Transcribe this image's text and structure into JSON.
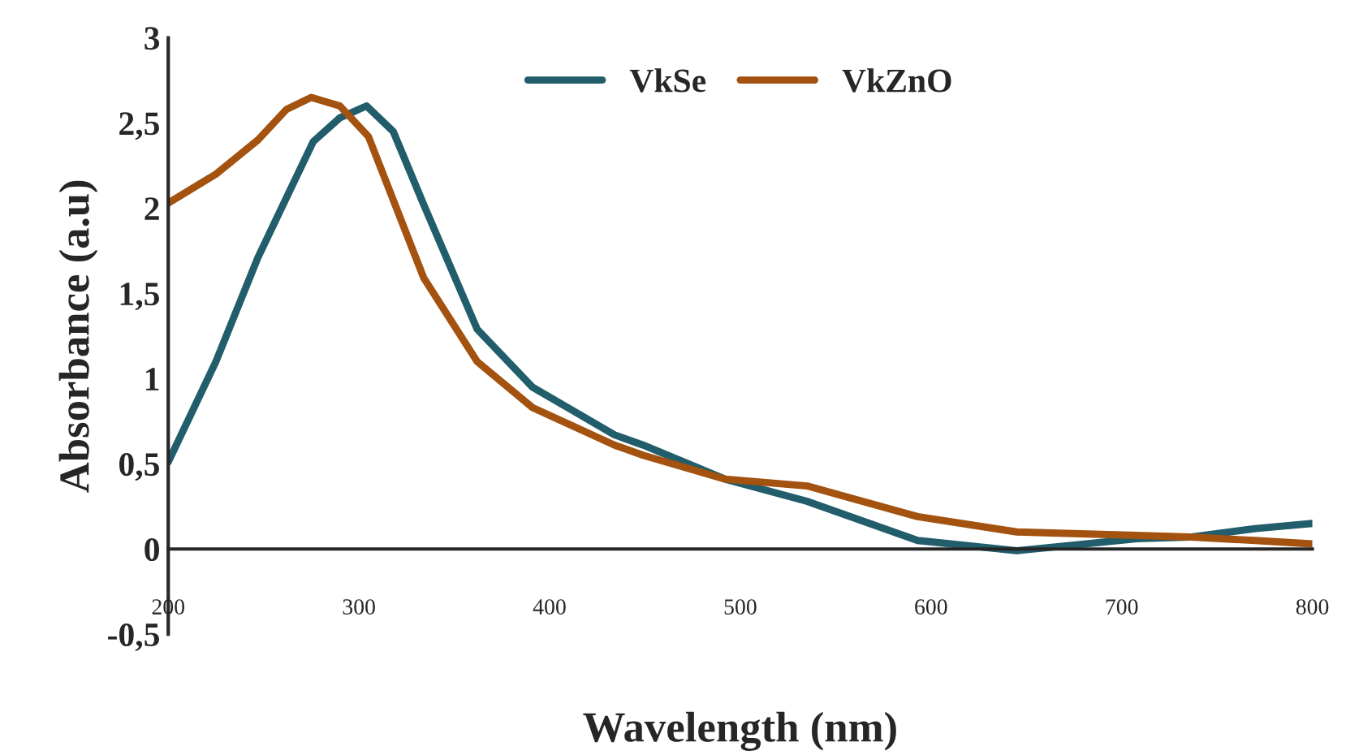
{
  "chart_data": {
    "type": "line",
    "xlabel": "Wavelength (nm)",
    "ylabel": "Absorbance (a.u)",
    "xlim": [
      200,
      800
    ],
    "ylim": [
      -0.5,
      3
    ],
    "xticks": [
      200,
      300,
      400,
      500,
      600,
      700,
      800
    ],
    "yticks": [
      {
        "value": -0.5,
        "label": "-0,5"
      },
      0,
      {
        "value": 0.5,
        "label": "0,5"
      },
      1,
      {
        "value": 1.5,
        "label": "1,5"
      },
      2,
      {
        "value": 2.5,
        "label": "2,5"
      },
      3
    ],
    "grid": false,
    "legend": "top right",
    "marker": "none",
    "line_style": "solid",
    "series": [
      {
        "name": "VkSe",
        "color": "#215d6b",
        "x": [
          200,
          225,
          247,
          276,
          290,
          304,
          318,
          334,
          362,
          391,
          434,
          449,
          492,
          535,
          593,
          645,
          708,
          736,
          770,
          800
        ],
        "values": [
          0.51,
          1.1,
          1.71,
          2.39,
          2.53,
          2.6,
          2.45,
          2.02,
          1.29,
          0.95,
          0.67,
          0.61,
          0.41,
          0.28,
          0.05,
          -0.01,
          0.06,
          0.07,
          0.12,
          0.15
        ]
      },
      {
        "name": "VkZnO",
        "color": "#a3520f",
        "x": [
          200,
          225,
          247,
          262,
          275,
          290,
          305,
          334,
          362,
          391,
          434,
          449,
          492,
          535,
          593,
          645,
          708,
          736,
          770,
          800
        ],
        "values": [
          2.03,
          2.2,
          2.4,
          2.58,
          2.65,
          2.6,
          2.42,
          1.59,
          1.1,
          0.83,
          0.61,
          0.55,
          0.41,
          0.37,
          0.19,
          0.1,
          0.08,
          0.07,
          0.05,
          0.03
        ]
      }
    ]
  }
}
